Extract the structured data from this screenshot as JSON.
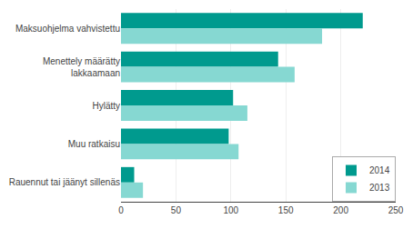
{
  "chart_data": {
    "type": "bar",
    "orientation": "horizontal",
    "categories": [
      "Maksuohjelma vahvistettu",
      "Menettely määrätty\nlakkaamaan",
      "Hylätty",
      "Muu ratkaisu",
      "Rauennut tai jäänyt sillenäs"
    ],
    "series": [
      {
        "name": "2014",
        "color": "#009a8e",
        "values": [
          220,
          143,
          102,
          98,
          12
        ]
      },
      {
        "name": "2013",
        "color": "#86d8d2",
        "values": [
          183,
          158,
          115,
          107,
          20
        ]
      }
    ],
    "xlim": [
      0,
      250
    ],
    "xticks": [
      0,
      50,
      100,
      150,
      200,
      250
    ],
    "grid": true,
    "legend": "lower right"
  }
}
